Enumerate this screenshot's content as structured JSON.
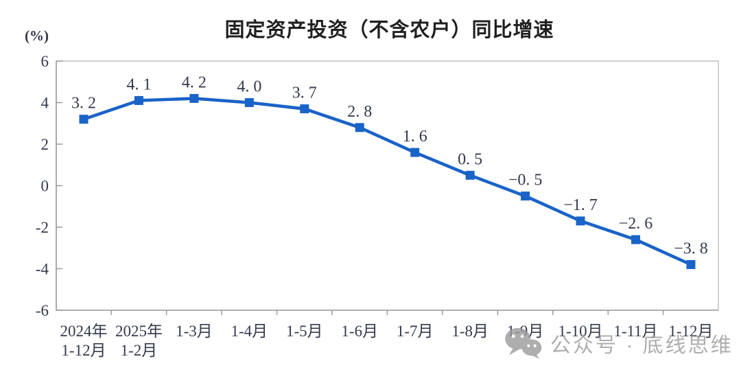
{
  "chart_data": {
    "type": "line",
    "title": "固定资产投资（不含农户）同比增速",
    "xlabel": "",
    "ylabel": "(%)",
    "categories": [
      [
        "2024年",
        "1-12月"
      ],
      [
        "2025年",
        "1-2月"
      ],
      [
        "1-3月"
      ],
      [
        "1-4月"
      ],
      [
        "1-5月"
      ],
      [
        "1-6月"
      ],
      [
        "1-7月"
      ],
      [
        "1-8月"
      ],
      [
        "1-9月"
      ],
      [
        "1-10月"
      ],
      [
        "1-11月"
      ],
      [
        "1-12月"
      ]
    ],
    "values": [
      3.2,
      4.1,
      4.2,
      4.0,
      3.7,
      2.8,
      1.6,
      0.5,
      -0.5,
      -1.7,
      -2.6,
      -3.8
    ],
    "point_labels": [
      "3. 2",
      "4. 1",
      "4. 2",
      "4. 0",
      "3. 7",
      "2. 8",
      "1. 6",
      "0. 5",
      "−0. 5",
      "−1. 7",
      "−2. 6",
      "−3. 8"
    ],
    "ylim": [
      -6,
      6
    ],
    "yticks": [
      6,
      4,
      2,
      0,
      -2,
      -4,
      -6
    ],
    "grid": false,
    "legend": "none",
    "line_color": "#1a63c8",
    "marker_shape": "square",
    "text_color": "#333a4d",
    "axis_color": "#9b9b9b",
    "border_color": "#bcbcbc"
  },
  "watermark": {
    "text": "公众号 · 底线思维",
    "color": "#9a9a9a"
  }
}
